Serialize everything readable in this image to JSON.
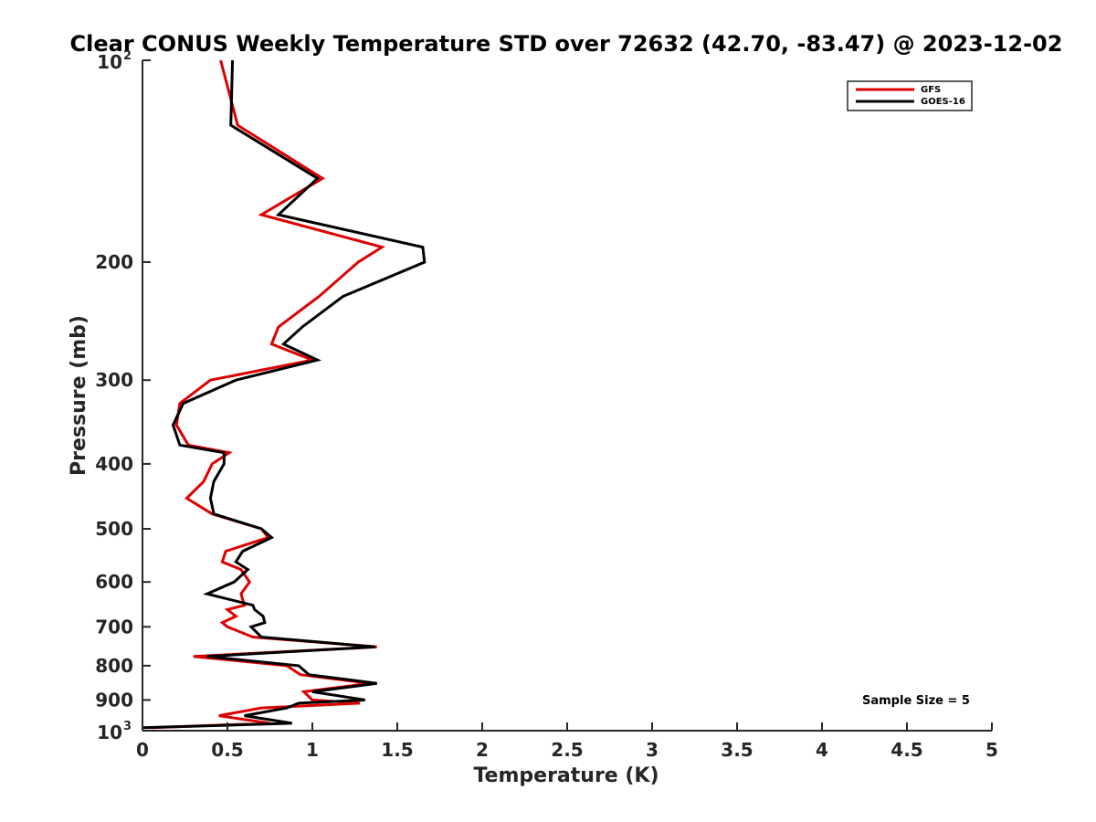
{
  "chart_data": {
    "type": "line",
    "title": "Clear CONUS Weekly Temperature STD over 72632 (42.70, -83.47) @ 2023-12-02",
    "xlabel": "Temperature (K)",
    "ylabel": "Pressure (mb)",
    "xlim": [
      0,
      5
    ],
    "ylim": [
      100,
      1000
    ],
    "y_scale": "log",
    "y_reversed": true,
    "grid": false,
    "legend_position": "top-right",
    "x_ticks": [
      "0",
      "0.5",
      "1",
      "1.5",
      "2",
      "2.5",
      "3",
      "3.5",
      "4",
      "4.5",
      "5"
    ],
    "y_ticks": [
      {
        "value": 100,
        "base": "10",
        "exp": "2"
      },
      {
        "value": 200,
        "label": "200"
      },
      {
        "value": 300,
        "label": "300"
      },
      {
        "value": 400,
        "label": "400"
      },
      {
        "value": 500,
        "label": "500"
      },
      {
        "value": 600,
        "label": "600"
      },
      {
        "value": 700,
        "label": "700"
      },
      {
        "value": 800,
        "label": "800"
      },
      {
        "value": 900,
        "label": "900"
      },
      {
        "value": 1000,
        "base": "10",
        "exp": "3"
      }
    ],
    "series": [
      {
        "name": "GFS",
        "color": "#dd0000",
        "points": [
          [
            0.46,
            100
          ],
          [
            0.56,
            125
          ],
          [
            1.06,
            150
          ],
          [
            0.7,
            170
          ],
          [
            1.41,
            190
          ],
          [
            1.27,
            200
          ],
          [
            1.04,
            225
          ],
          [
            0.8,
            250
          ],
          [
            0.76,
            265
          ],
          [
            1.0,
            280
          ],
          [
            0.4,
            300
          ],
          [
            0.22,
            325
          ],
          [
            0.2,
            350
          ],
          [
            0.27,
            375
          ],
          [
            0.51,
            385
          ],
          [
            0.41,
            400
          ],
          [
            0.36,
            425
          ],
          [
            0.26,
            450
          ],
          [
            0.41,
            475
          ],
          [
            0.7,
            500
          ],
          [
            0.74,
            515
          ],
          [
            0.49,
            540
          ],
          [
            0.47,
            560
          ],
          [
            0.58,
            575
          ],
          [
            0.63,
            600
          ],
          [
            0.58,
            625
          ],
          [
            0.6,
            650
          ],
          [
            0.5,
            660
          ],
          [
            0.55,
            675
          ],
          [
            0.47,
            690
          ],
          [
            0.5,
            700
          ],
          [
            0.65,
            725
          ],
          [
            1.38,
            750
          ],
          [
            0.3,
            775
          ],
          [
            0.85,
            800
          ],
          [
            0.93,
            825
          ],
          [
            1.34,
            850
          ],
          [
            0.95,
            875
          ],
          [
            1.0,
            900
          ],
          [
            1.28,
            910
          ],
          [
            0.7,
            925
          ],
          [
            0.45,
            950
          ],
          [
            0.75,
            975
          ],
          [
            0.05,
            990
          ]
        ]
      },
      {
        "name": "GOES-16",
        "color": "#000000",
        "points": [
          [
            0.53,
            100
          ],
          [
            0.52,
            125
          ],
          [
            1.03,
            150
          ],
          [
            0.8,
            170
          ],
          [
            1.65,
            190
          ],
          [
            1.66,
            200
          ],
          [
            1.18,
            225
          ],
          [
            0.94,
            250
          ],
          [
            0.83,
            265
          ],
          [
            1.03,
            280
          ],
          [
            0.55,
            300
          ],
          [
            0.24,
            325
          ],
          [
            0.18,
            350
          ],
          [
            0.22,
            375
          ],
          [
            0.48,
            385
          ],
          [
            0.48,
            400
          ],
          [
            0.42,
            425
          ],
          [
            0.4,
            450
          ],
          [
            0.42,
            475
          ],
          [
            0.7,
            500
          ],
          [
            0.76,
            515
          ],
          [
            0.59,
            540
          ],
          [
            0.55,
            560
          ],
          [
            0.62,
            575
          ],
          [
            0.54,
            600
          ],
          [
            0.38,
            625
          ],
          [
            0.65,
            650
          ],
          [
            0.66,
            660
          ],
          [
            0.71,
            675
          ],
          [
            0.72,
            690
          ],
          [
            0.64,
            700
          ],
          [
            0.7,
            725
          ],
          [
            1.37,
            750
          ],
          [
            0.38,
            775
          ],
          [
            0.92,
            800
          ],
          [
            0.98,
            825
          ],
          [
            1.38,
            850
          ],
          [
            1.0,
            875
          ],
          [
            1.31,
            900
          ],
          [
            0.92,
            910
          ],
          [
            0.85,
            925
          ],
          [
            0.6,
            950
          ],
          [
            0.88,
            975
          ],
          [
            0.0,
            990
          ]
        ]
      }
    ],
    "annotations": [
      "Sample Size = 5"
    ]
  }
}
